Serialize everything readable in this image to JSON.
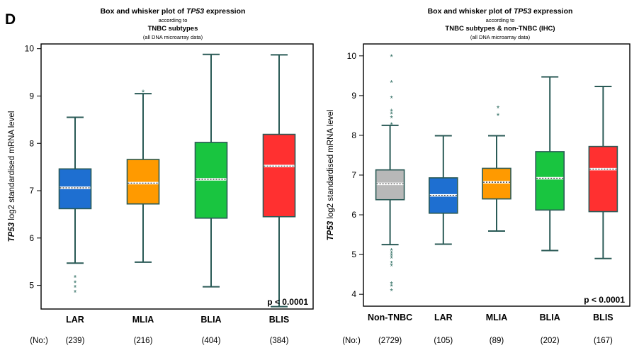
{
  "panel_label": "D",
  "count_prefix": "(No:)",
  "chart_data": [
    {
      "type": "box",
      "title_prefix": "Box and whisker plot of ",
      "title_gene": "TP53",
      "title_suffix": " expression",
      "according_to": "according to",
      "subtitle": "TNBC subtypes",
      "note": "(all DNA microarray data)",
      "ylabel_gene": "TP53",
      "ylabel_rest": " log2 standardised mRNA level",
      "ylim": [
        4.5,
        10.1
      ],
      "yticks": [
        5,
        6,
        7,
        8,
        9,
        10
      ],
      "p_value": "p < 0.0001",
      "groups": [
        {
          "name": "LAR",
          "n": "(239)",
          "color": "#1e6fd1",
          "q1": 6.62,
          "median": 7.06,
          "q3": 7.46,
          "lower": 5.47,
          "upper": 8.55,
          "outliers": [
            5.18,
            5.07,
            4.97,
            4.87
          ]
        },
        {
          "name": "MLIA",
          "n": "(216)",
          "color": "#ff9a00",
          "q1": 6.72,
          "median": 7.16,
          "q3": 7.66,
          "lower": 5.49,
          "upper": 9.05,
          "outliers": [
            9.1
          ]
        },
        {
          "name": "BLIA",
          "n": "(404)",
          "color": "#19c540",
          "q1": 6.42,
          "median": 7.24,
          "q3": 8.02,
          "lower": 4.97,
          "upper": 9.88,
          "outliers": []
        },
        {
          "name": "BLIS",
          "n": "(384)",
          "color": "#ff3030",
          "q1": 6.45,
          "median": 7.52,
          "q3": 8.19,
          "lower": 4.55,
          "upper": 9.87,
          "outliers": []
        }
      ]
    },
    {
      "type": "box",
      "title_prefix": "Box and whisker plot of ",
      "title_gene": "TP53",
      "title_suffix": " expression",
      "according_to": "according to",
      "subtitle": "TNBC subtypes & non-TNBC (IHC)",
      "note": "(all DNA microarray data)",
      "ylabel_gene": "TP53",
      "ylabel_rest": " log2 standardised mRNA level",
      "ylim": [
        3.7,
        10.3
      ],
      "yticks": [
        4,
        5,
        6,
        7,
        8,
        9,
        10
      ],
      "p_value": "p < 0.0001",
      "groups": [
        {
          "name": "Non-TNBC",
          "n": "(2729)",
          "color": "#b8b8b8",
          "q1": 6.38,
          "median": 6.78,
          "q3": 7.13,
          "lower": 5.25,
          "upper": 8.25,
          "outliers": [
            10.0,
            9.35,
            8.95,
            8.62,
            8.55,
            8.45,
            8.28,
            5.12,
            5.05,
            4.98,
            4.92,
            4.8,
            4.73,
            4.28,
            4.22,
            4.1
          ]
        },
        {
          "name": "LAR",
          "n": "(105)",
          "color": "#1e6fd1",
          "q1": 6.04,
          "median": 6.49,
          "q3": 6.93,
          "lower": 5.26,
          "upper": 7.99,
          "outliers": []
        },
        {
          "name": "MLIA",
          "n": "(89)",
          "color": "#ff9a00",
          "q1": 6.4,
          "median": 6.82,
          "q3": 7.17,
          "lower": 5.59,
          "upper": 7.99,
          "outliers": [
            8.7,
            8.52
          ]
        },
        {
          "name": "BLIA",
          "n": "(202)",
          "color": "#19c540",
          "q1": 6.12,
          "median": 6.92,
          "q3": 7.59,
          "lower": 5.1,
          "upper": 9.47,
          "outliers": []
        },
        {
          "name": "BLIS",
          "n": "(167)",
          "color": "#ff3030",
          "q1": 6.08,
          "median": 7.15,
          "q3": 7.72,
          "lower": 4.9,
          "upper": 9.23,
          "outliers": []
        }
      ]
    }
  ]
}
